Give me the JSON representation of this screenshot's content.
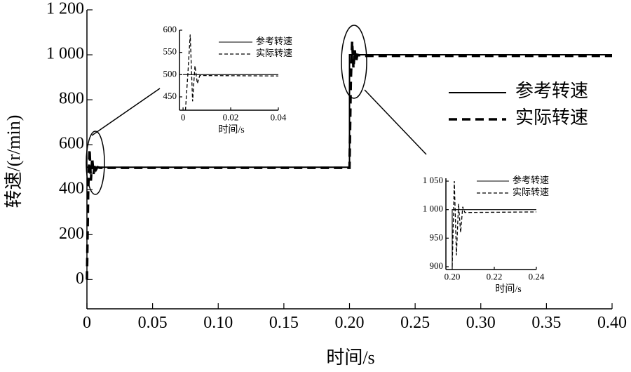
{
  "chart_data": [
    {
      "type": "line",
      "x_label": "时间/s",
      "y_label": "转速/(r/min)",
      "xlim": [
        0,
        0.4
      ],
      "xticks": [
        0,
        0.05,
        {
          "value": 0.1,
          "label": "0.10"
        },
        0.15,
        {
          "value": 0.2,
          "label": "0.20"
        },
        0.25,
        {
          "value": 0.3,
          "label": "0.30"
        },
        0.35,
        {
          "value": 0.4,
          "label": "0.40"
        }
      ],
      "ylim": [
        -130,
        1200
      ],
      "yticks": [
        0,
        200,
        400,
        600,
        800,
        {
          "value": 1000,
          "label": "1 000"
        },
        {
          "value": 1200,
          "label": "1 200"
        }
      ],
      "legend": "upper right",
      "series": [
        {
          "name": "参考转速",
          "color": "#000000",
          "line_style": "solid",
          "x": [
            0,
            0.2,
            0.2,
            0.4
          ],
          "values": [
            500,
            500,
            1000,
            1000
          ]
        },
        {
          "name": "实际转速",
          "color": "#000000",
          "line_style": "dashed",
          "x": [
            0,
            0.001,
            0.002,
            0.003,
            0.004,
            0.005,
            0.006,
            0.007,
            0.008,
            0.01,
            0.2,
            0.201,
            0.202,
            0.203,
            0.204,
            0.205,
            0.206,
            0.21,
            0.4
          ],
          "values": [
            0,
            400,
            580,
            440,
            540,
            470,
            510,
            490,
            500,
            497,
            497,
            880,
            1060,
            940,
            1020,
            970,
            1000,
            995,
            995
          ]
        }
      ]
    },
    {
      "type": "line",
      "x_label": "时间/s",
      "xlim": [
        -0.0015,
        0.04
      ],
      "xticks": [
        0,
        0.02,
        0.04
      ],
      "ylim": [
        420,
        600
      ],
      "yticks": [
        450,
        500,
        550,
        600
      ],
      "legend": "upper right",
      "series": [
        {
          "name": "参考转速",
          "color": "#000000",
          "line_style": "solid",
          "x": [
            0,
            0.04
          ],
          "values": [
            500,
            500
          ]
        },
        {
          "name": "实际转速",
          "color": "#000000",
          "line_style": "dashed",
          "x": [
            0.001,
            0.002,
            0.003,
            0.004,
            0.005,
            0.006,
            0.007,
            0.04
          ],
          "values": [
            420,
            500,
            590,
            440,
            520,
            480,
            498,
            497
          ]
        }
      ]
    },
    {
      "type": "line",
      "x_label": "时间/s",
      "xlim": [
        0.197,
        0.24
      ],
      "xticks": [
        {
          "value": 0.2,
          "label": "0.20"
        },
        {
          "value": 0.22,
          "label": "0.22"
        },
        {
          "value": 0.24,
          "label": "0.24"
        }
      ],
      "ylim": [
        895,
        1055
      ],
      "yticks": [
        900,
        950,
        {
          "value": 1000,
          "label": "1 000"
        },
        {
          "value": 1050,
          "label": "1 050"
        }
      ],
      "legend": "upper right",
      "series": [
        {
          "name": "参考转速",
          "color": "#000000",
          "line_style": "solid",
          "x": [
            0.2,
            0.2,
            0.24
          ],
          "values": [
            900,
            1000,
            1000
          ]
        },
        {
          "name": "实际转速",
          "color": "#000000",
          "line_style": "dashed",
          "x": [
            0.2,
            0.201,
            0.202,
            0.203,
            0.204,
            0.205,
            0.206,
            0.24
          ],
          "values": [
            900,
            1050,
            920,
            1010,
            960,
            1005,
            995,
            996
          ]
        }
      ]
    }
  ]
}
